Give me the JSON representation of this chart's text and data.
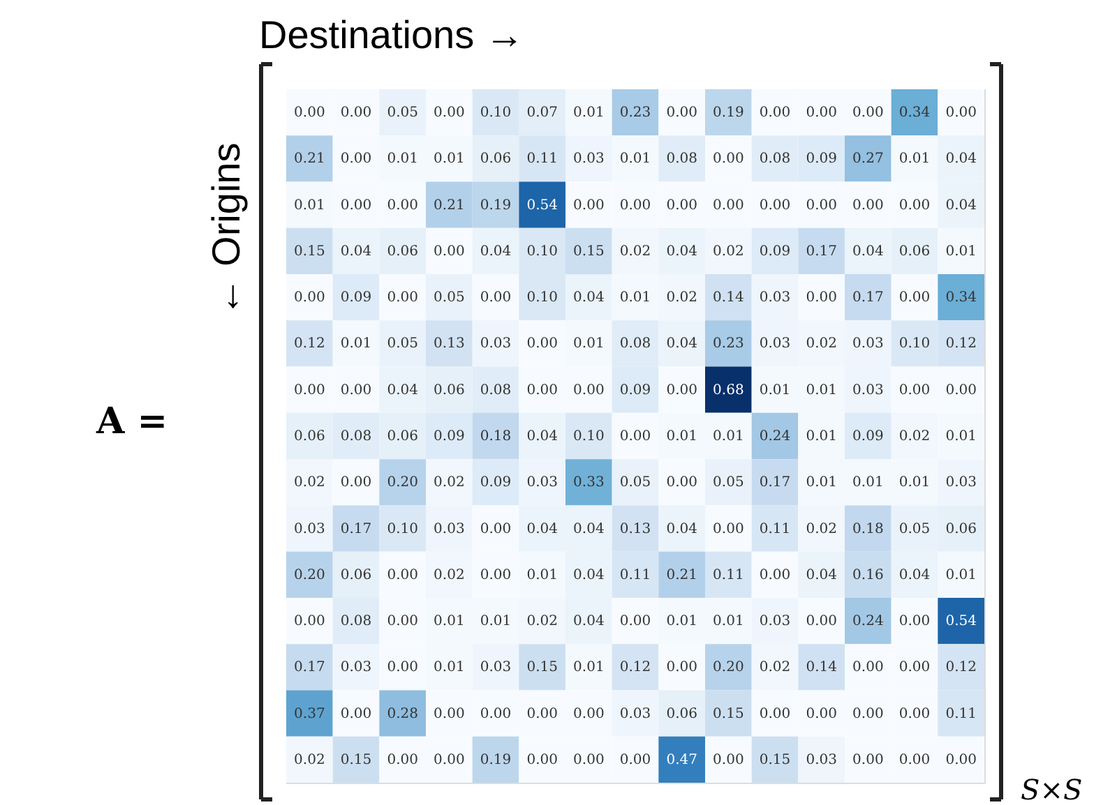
{
  "chart_data": {
    "type": "heatmap",
    "xlabel": "Destinations →",
    "ylabel": "← Origins",
    "annotations": [
      "A =",
      "S×S"
    ],
    "categories": [
      null,
      null,
      null,
      null,
      null,
      null,
      null,
      null,
      null,
      null,
      null,
      null,
      null,
      null,
      null
    ],
    "y_categories": [
      null,
      null,
      null,
      null,
      null,
      null,
      null,
      null,
      null,
      null,
      null,
      null,
      null,
      null,
      null
    ],
    "cells": [
      [
        0.0,
        0.0,
        0.05,
        0.0,
        0.1,
        0.07,
        0.01,
        0.23,
        0.0,
        0.19,
        0.0,
        0.0,
        0.0,
        0.34,
        0.0
      ],
      [
        0.21,
        0.0,
        0.01,
        0.01,
        0.06,
        0.11,
        0.03,
        0.01,
        0.08,
        0.0,
        0.08,
        0.09,
        0.27,
        0.01,
        0.04
      ],
      [
        0.01,
        0.0,
        0.0,
        0.21,
        0.19,
        0.54,
        0.0,
        0.0,
        0.0,
        0.0,
        0.0,
        0.0,
        0.0,
        0.0,
        0.04
      ],
      [
        0.15,
        0.04,
        0.06,
        0.0,
        0.04,
        0.1,
        0.15,
        0.02,
        0.04,
        0.02,
        0.09,
        0.17,
        0.04,
        0.06,
        0.01
      ],
      [
        0.0,
        0.09,
        0.0,
        0.05,
        0.0,
        0.1,
        0.04,
        0.01,
        0.02,
        0.14,
        0.03,
        0.0,
        0.17,
        0.0,
        0.34
      ],
      [
        0.12,
        0.01,
        0.05,
        0.13,
        0.03,
        0.0,
        0.01,
        0.08,
        0.04,
        0.23,
        0.03,
        0.02,
        0.03,
        0.1,
        0.12
      ],
      [
        0.0,
        0.0,
        0.04,
        0.06,
        0.08,
        0.0,
        0.0,
        0.09,
        0.0,
        0.68,
        0.01,
        0.01,
        0.03,
        0.0,
        0.0
      ],
      [
        0.06,
        0.08,
        0.06,
        0.09,
        0.18,
        0.04,
        0.1,
        0.0,
        0.01,
        0.01,
        0.24,
        0.01,
        0.09,
        0.02,
        0.01
      ],
      [
        0.02,
        0.0,
        0.2,
        0.02,
        0.09,
        0.03,
        0.33,
        0.05,
        0.0,
        0.05,
        0.17,
        0.01,
        0.01,
        0.01,
        0.03
      ],
      [
        0.03,
        0.17,
        0.1,
        0.03,
        0.0,
        0.04,
        0.04,
        0.13,
        0.04,
        0.0,
        0.11,
        0.02,
        0.18,
        0.05,
        0.06
      ],
      [
        0.2,
        0.06,
        0.0,
        0.02,
        0.0,
        0.01,
        0.04,
        0.11,
        0.21,
        0.11,
        0.0,
        0.04,
        0.16,
        0.04,
        0.01
      ],
      [
        0.0,
        0.08,
        0.0,
        0.01,
        0.01,
        0.02,
        0.04,
        0.0,
        0.01,
        0.01,
        0.03,
        0.0,
        0.24,
        0.0,
        0.54
      ],
      [
        0.17,
        0.03,
        0.0,
        0.01,
        0.03,
        0.15,
        0.01,
        0.12,
        0.0,
        0.2,
        0.02,
        0.14,
        0.0,
        0.0,
        0.12
      ],
      [
        0.37,
        0.0,
        0.28,
        0.0,
        0.0,
        0.0,
        0.0,
        0.03,
        0.06,
        0.15,
        0.0,
        0.0,
        0.0,
        0.0,
        0.11
      ],
      [
        0.02,
        0.15,
        0.0,
        0.0,
        0.19,
        0.0,
        0.0,
        0.0,
        0.47,
        0.0,
        0.15,
        0.03,
        0.0,
        0.0,
        0.0
      ]
    ],
    "cell_labels": [
      [
        "0.00",
        "0.00",
        "0.05",
        "0.00",
        "0.10",
        "0.07",
        "0.01",
        "0.23",
        "0.00",
        "0.19",
        "0.00",
        "0.00",
        "0.00",
        "0.34",
        "0.00"
      ],
      [
        "0.21",
        "0.00",
        "0.01",
        "0.01",
        "0.06",
        "0.11",
        "0.03",
        "0.01",
        "0.08",
        "0.00",
        "0.08",
        "0.09",
        "0.27",
        "0.01",
        "0.04"
      ],
      [
        "0.01",
        "0.00",
        "0.00",
        "0.21",
        "0.19",
        "0.54",
        "0.00",
        "0.00",
        "0.00",
        "0.00",
        "0.00",
        "0.00",
        "0.00",
        "0.00",
        "0.04"
      ],
      [
        "0.15",
        "0.04",
        "0.06",
        "0.00",
        "0.04",
        "0.10",
        "0.15",
        "0.02",
        "0.04",
        "0.02",
        "0.09",
        "0.17",
        "0.04",
        "0.06",
        "0.01"
      ],
      [
        "0.00",
        "0.09",
        "0.00",
        "0.05",
        "0.00",
        "0.10",
        "0.04",
        "0.01",
        "0.02",
        "0.14",
        "0.03",
        "0.00",
        "0.17",
        "0.00",
        "0.34"
      ],
      [
        "0.12",
        "0.01",
        "0.05",
        "0.13",
        "0.03",
        "0.00",
        "0.01",
        "0.08",
        "0.04",
        "0.23",
        "0.03",
        "0.02",
        "0.03",
        "0.10",
        "0.12"
      ],
      [
        "0.00",
        "0.00",
        "0.04",
        "0.06",
        "0.08",
        "0.00",
        "0.00",
        "0.09",
        "0.00",
        "0.68",
        "0.01",
        "0.01",
        "0.03",
        "0.00",
        "0.00"
      ],
      [
        "0.06",
        "0.08",
        "0.06",
        "0.09",
        "0.18",
        "0.04",
        "0.10",
        "0.00",
        "0.01",
        "0.01",
        "0.24",
        "0.01",
        "0.09",
        "0.02",
        "0.01"
      ],
      [
        "0.02",
        "0.00",
        "0.20",
        "0.02",
        "0.09",
        "0.03",
        "0.33",
        "0.05",
        "0.00",
        "0.05",
        "0.17",
        "0.01",
        "0.01",
        "0.01",
        "0.03"
      ],
      [
        "0.03",
        "0.17",
        "0.10",
        "0.03",
        "0.00",
        "0.04",
        "0.04",
        "0.13",
        "0.04",
        "0.00",
        "0.11",
        "0.02",
        "0.18",
        "0.05",
        "0.06"
      ],
      [
        "0.20",
        "0.06",
        "0.00",
        "0.02",
        "0.00",
        "0.01",
        "0.04",
        "0.11",
        "0.21",
        "0.11",
        "0.00",
        "0.04",
        "0.16",
        "0.04",
        "0.01"
      ],
      [
        "0.00",
        "0.08",
        "0.00",
        "0.01",
        "0.01",
        "0.02",
        "0.04",
        "0.00",
        "0.01",
        "0.01",
        "0.03",
        "0.00",
        "0.24",
        "0.00",
        "0.54"
      ],
      [
        "0.17",
        "0.03",
        "0.00",
        "0.01",
        "0.03",
        "0.15",
        "0.01",
        "0.12",
        "0.00",
        "0.20",
        "0.02",
        "0.14",
        "0.00",
        "0.00",
        "0.12"
      ],
      [
        "0.37",
        "0.00",
        "0.28",
        "0.00",
        "0.00",
        "0.00",
        "0.00",
        "0.03",
        "0.06",
        "0.15",
        "0.00",
        "0.00",
        "0.00",
        "0.00",
        "0.11"
      ],
      [
        "0.02",
        "0.15",
        "0.00",
        "0.00",
        "0.19",
        "0.00",
        "0.00",
        "0.00",
        "0.47",
        "0.00",
        "0.15",
        "0.03",
        "0.00",
        "0.00",
        "0.00"
      ]
    ],
    "tick_labels": false
  }
}
